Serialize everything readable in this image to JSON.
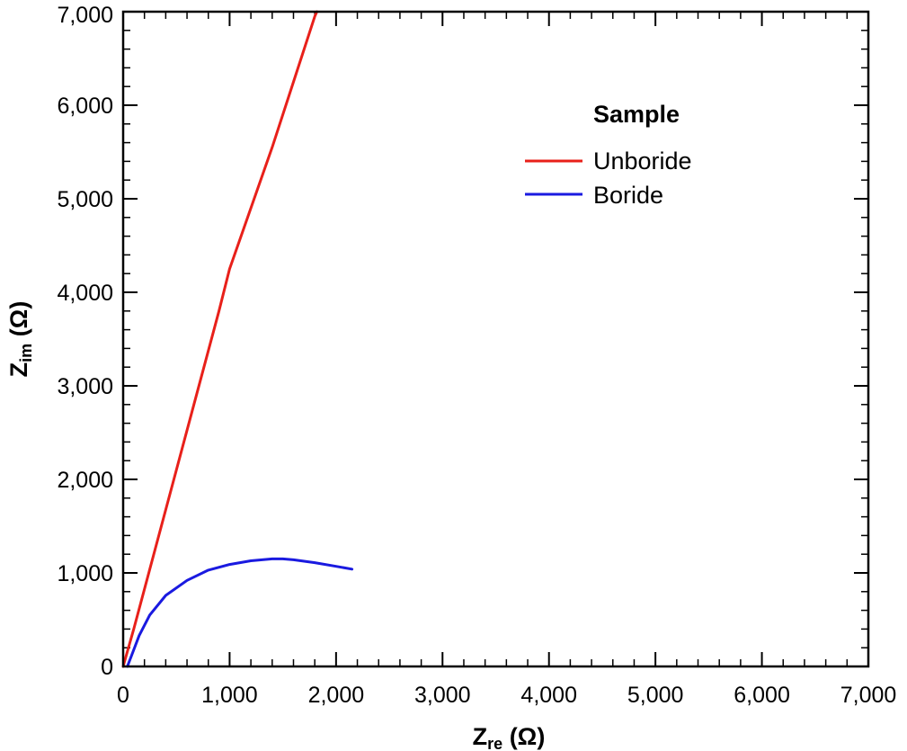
{
  "chart_data": {
    "type": "line",
    "xlabel": {
      "main": "Z",
      "sub": "re",
      "unit": " (Ω)"
    },
    "ylabel": {
      "main": "Z",
      "sub": "im",
      "unit": " (Ω)"
    },
    "xlim": [
      0,
      7000
    ],
    "ylim": [
      0,
      7000
    ],
    "xticks": [
      0,
      1000,
      2000,
      3000,
      4000,
      5000,
      6000,
      7000
    ],
    "yticks": [
      0,
      1000,
      2000,
      3000,
      4000,
      5000,
      6000,
      7000
    ],
    "xtick_labels": [
      "0",
      "1,000",
      "2,000",
      "3,000",
      "4,000",
      "5,000",
      "6,000",
      "7,000"
    ],
    "ytick_labels": [
      "0",
      "1,000",
      "2,000",
      "3,000",
      "4,000",
      "5,000",
      "6,000",
      "7,000"
    ],
    "minor_ticks_per_major": 5,
    "grid": false,
    "legend": {
      "title": "Sample",
      "position": "top-right"
    },
    "series": [
      {
        "name": "Unboride",
        "color": "#e8201a",
        "x": [
          0,
          100,
          300,
          500,
          700,
          900,
          1000,
          1200,
          1400,
          1600,
          1800,
          1820
        ],
        "y": [
          0,
          400,
          1250,
          2100,
          2950,
          3800,
          4250,
          4900,
          5550,
          6250,
          6950,
          7000
        ]
      },
      {
        "name": "Boride",
        "color": "#1a1ae0",
        "x": [
          40,
          80,
          150,
          250,
          400,
          600,
          800,
          1000,
          1200,
          1400,
          1500,
          1600,
          1800,
          2000,
          2150
        ],
        "y": [
          0,
          120,
          330,
          550,
          760,
          920,
          1030,
          1090,
          1130,
          1150,
          1150,
          1140,
          1110,
          1070,
          1040
        ]
      }
    ]
  }
}
